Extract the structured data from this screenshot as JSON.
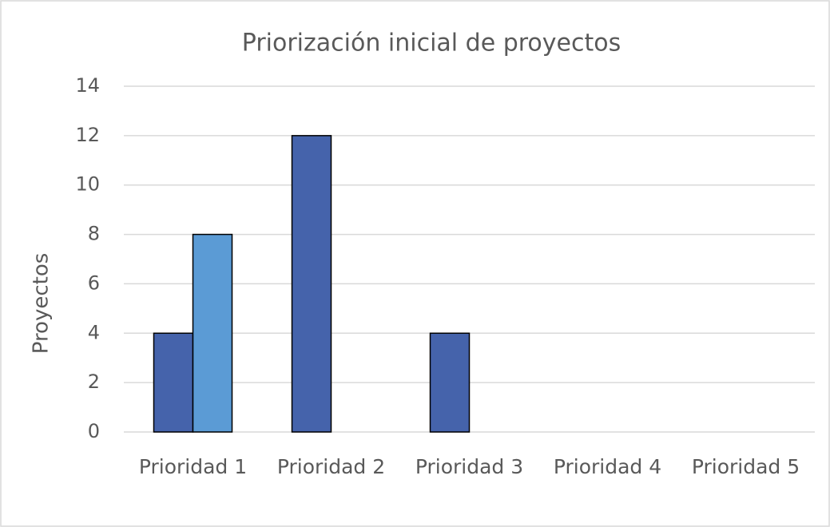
{
  "chart_data": {
    "type": "bar",
    "title": "Priorización inicial de proyectos",
    "y_label": "Proyectos",
    "categories": [
      "Prioridad 1",
      "Prioridad 2",
      "Prioridad 3",
      "Prioridad 4",
      "Prioridad 5"
    ],
    "series": [
      {
        "color": "#4563ab",
        "values": [
          4,
          12,
          4,
          0,
          0
        ]
      },
      {
        "color": "#5b9bd5",
        "values": [
          8,
          0,
          0,
          0,
          0
        ]
      }
    ],
    "ylim": [
      0,
      14
    ],
    "yticks": [
      0,
      2,
      4,
      6,
      8,
      10,
      12,
      14
    ],
    "grid": true
  }
}
